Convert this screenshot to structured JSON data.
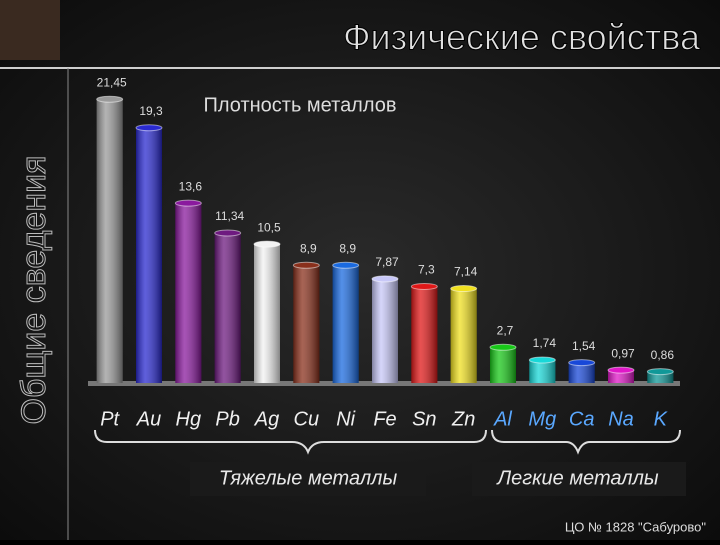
{
  "slide": {
    "title": "Физические свойства",
    "side_title": "Общие сведения",
    "footer": "ЦО № 1828 \"Сабурово\""
  },
  "chart_data": {
    "type": "bar",
    "title": "Плотность металлов",
    "categories": [
      "Pt",
      "Au",
      "Hg",
      "Pb",
      "Ag",
      "Cu",
      "Ni",
      "Fe",
      "Sn",
      "Zn",
      "Al",
      "Mg",
      "Ca",
      "Na",
      "K"
    ],
    "values": [
      21.45,
      19.3,
      13.6,
      11.34,
      10.5,
      8.9,
      8.9,
      7.87,
      7.3,
      7.14,
      2.7,
      1.74,
      1.54,
      0.97,
      0.86
    ],
    "value_labels": [
      "21,45",
      "19,3",
      "13,6",
      "11,34",
      "10,5",
      "8,9",
      "8,9",
      "7,87",
      "7,3",
      "7,14",
      "2,7",
      "1,74",
      "1,54",
      "0,97",
      "0,86"
    ],
    "colors": [
      "#9a9a9a",
      "#2a2ad0",
      "#8a1a9e",
      "#6e1a80",
      "#f2f2f2",
      "#8a301c",
      "#1a6ae0",
      "#c8c8f8",
      "#e01818",
      "#f0e020",
      "#18c818",
      "#18d8d8",
      "#1848d8",
      "#e018c8",
      "#109898"
    ],
    "ylim": [
      0,
      22
    ],
    "groups": [
      "Тяжелые металлы",
      "Легкие металлы"
    ]
  }
}
